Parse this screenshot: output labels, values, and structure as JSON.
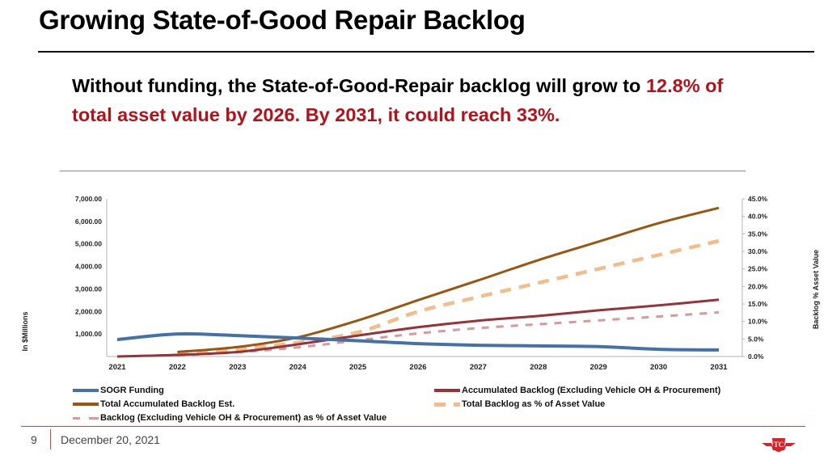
{
  "slide": {
    "title": "Growing State-of-Good Repair Backlog",
    "headline": {
      "part1": "Without funding, the State-of-Good-Repair backlog will grow to ",
      "highlight": "12.8% of total asset value by 2026. By 2031, it could reach 33%."
    },
    "footer": {
      "page_number": "9",
      "date": "December 20, 2021",
      "logo_icon": "ttc-logo-icon"
    },
    "colors": {
      "title_rule": "#111111",
      "highlight": "#b3121a",
      "footer_accent": "#c5484d"
    }
  },
  "chart_data": {
    "type": "line",
    "title": "",
    "xlabel": "",
    "ylabel": "In $Millions",
    "y2label": "Backlog % Asset Value",
    "categories": [
      "2021",
      "2022",
      "2023",
      "2024",
      "2025",
      "2026",
      "2027",
      "2028",
      "2029",
      "2030",
      "2031"
    ],
    "ylim": [
      0,
      7000
    ],
    "y2lim": [
      0,
      45
    ],
    "yticks": [
      "1,000.00",
      "2,000.00",
      "3,000.00",
      "4,000.00",
      "5,000.00",
      "6,000.00",
      "7,000.00"
    ],
    "ytick_values": [
      1000,
      2000,
      3000,
      4000,
      5000,
      6000,
      7000
    ],
    "y2ticks": [
      "0.0%",
      "5.0%",
      "10.0%",
      "15.0%",
      "20.0%",
      "25.0%",
      "30.0%",
      "35.0%",
      "40.0%",
      "45.0%"
    ],
    "y2tick_values": [
      0,
      5,
      10,
      15,
      20,
      25,
      30,
      35,
      40,
      45
    ],
    "grid": false,
    "legend_position": "bottom",
    "series": [
      {
        "name": "SOGR Funding",
        "axis": "left",
        "color": "#4472a8",
        "dash": false,
        "width": 4,
        "values": [
          750,
          1000,
          930,
          820,
          700,
          570,
          500,
          470,
          440,
          320,
          290
        ]
      },
      {
        "name": "Accumulated Backlog (Excluding Vehicle OH & Procurement)",
        "axis": "left",
        "color": "#953338",
        "dash": false,
        "width": 3,
        "values": [
          0,
          70,
          200,
          540,
          930,
          1300,
          1590,
          1800,
          2050,
          2270,
          2520
        ]
      },
      {
        "name": "Total Accumulated Backlog Est.",
        "axis": "left",
        "color": "#9a5510",
        "dash": false,
        "width": 3,
        "values": [
          null,
          200,
          420,
          850,
          1600,
          2500,
          3380,
          4280,
          5100,
          5920,
          6600
        ]
      },
      {
        "name": "Total Backlog as % of  Asset Value",
        "axis": "right",
        "color": "#f2bd8c",
        "dash": true,
        "width": 4.5,
        "values": [
          null,
          1.0,
          2.1,
          4.0,
          6.9,
          12.8,
          17.0,
          21.0,
          25.0,
          29.0,
          33.0
        ]
      },
      {
        "name": "Backlog (Excluding Vehicle OH & Procurement) as % of  Asset Value",
        "axis": "right",
        "color": "#d79a9c",
        "dash": true,
        "width": 3,
        "values": [
          null,
          0.3,
          1.2,
          2.6,
          4.6,
          6.6,
          8.1,
          9.2,
          10.3,
          11.4,
          12.6
        ]
      }
    ]
  }
}
